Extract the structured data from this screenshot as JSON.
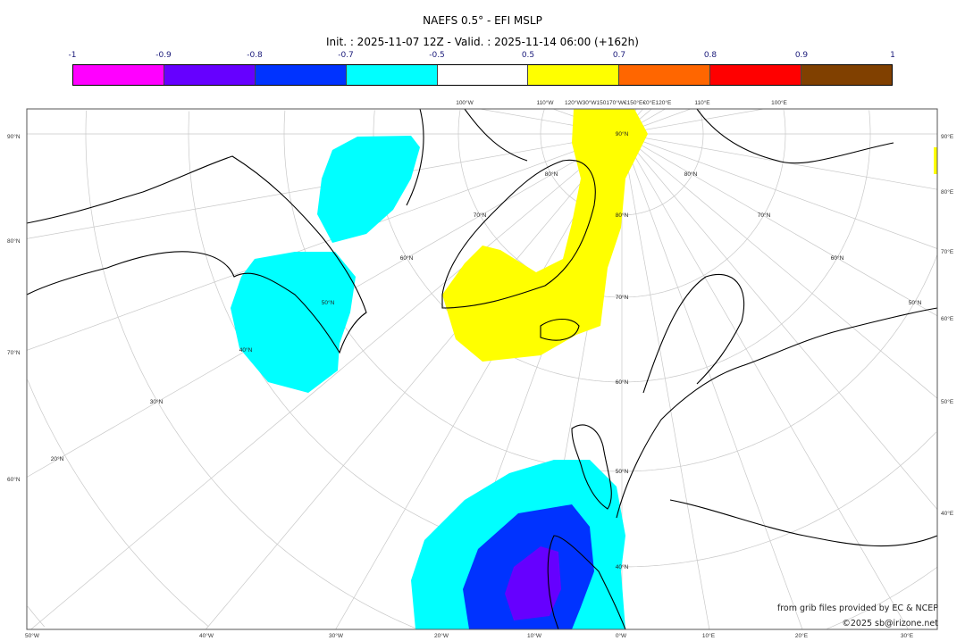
{
  "header": {
    "title": "NAEFS 0.5° - EFI MSLP",
    "subtitle": "Init. : 2025-11-07 12Z - Valid. : 2025-11-14 06:00 (+162h)"
  },
  "colorbar": {
    "ticks": [
      "-1",
      "-0.9",
      "-0.8",
      "-0.7",
      "-0.5",
      "0.5",
      "0.7",
      "0.8",
      "0.9",
      "1"
    ],
    "colors": [
      "#ff00ff",
      "#6600ff",
      "#0033ff",
      "#00ffff",
      "#ffffff",
      "#ffff00",
      "#ff6600",
      "#ff0000",
      "#804000"
    ]
  },
  "map": {
    "left_lat_labels": [
      "90°N",
      "80°N",
      "70°N",
      "60°N"
    ],
    "right_lon_labels": [
      "90°E",
      "80°E",
      "70°E",
      "60°E",
      "50°E",
      "40°E"
    ],
    "bottom_lon_labels": [
      "50°W",
      "40°W",
      "30°W",
      "20°W",
      "10°W",
      "0°W",
      "10°E",
      "20°E",
      "30°E"
    ],
    "top_lon_labels": [
      "100°W",
      "110°W",
      "120°W30°W150170°W€150°E€0°E120°E",
      "110°E",
      "100°E"
    ],
    "interior_lat_labels": [
      "90°N",
      "80°N",
      "70°N",
      "60°N",
      "50°N",
      "40°N",
      "80°N",
      "80°N",
      "70°N",
      "70°N",
      "60°N",
      "60°N",
      "50°N",
      "50°N",
      "40°N",
      "30°N",
      "20°N"
    ]
  },
  "credits": {
    "source": "from grib files provided by EC & NCEP",
    "copyright": "©2025 sb@irizone.net"
  }
}
